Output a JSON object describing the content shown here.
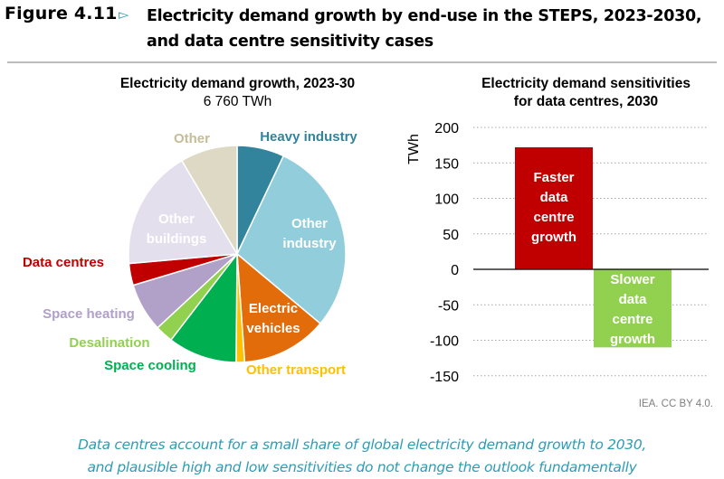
{
  "figure": {
    "number": "Figure 4.11",
    "arrow": "▻",
    "title_line1": "Electricity demand growth by end-use in the STEPS, 2023-2030,",
    "title_line2": "and data centre sensitivity cases",
    "credit": "IEA. CC BY 4.0.",
    "takeaway_line1": "Data centres account for a small share of global electricity demand growth to 2030,",
    "takeaway_line2": "and plausible high and low sensitivities do not change the outlook fundamentally"
  },
  "chart_data": [
    {
      "type": "pie",
      "title": "Electricity demand growth, 2023-30",
      "subtitle": "6 760 TWh",
      "unit": "TWh",
      "total": 6760,
      "start": "top, clockwise",
      "slices": [
        {
          "label": "Heavy industry",
          "value": 475,
          "color": "#31849b",
          "label_color": "#31849b",
          "label_inside": false
        },
        {
          "label": "Other industry",
          "value": 1965,
          "color": "#92cddc",
          "label_color": "#ffffff",
          "label_inside": true
        },
        {
          "label": "Electric vehicles",
          "value": 865,
          "color": "#e36c0a",
          "label_color": "#ffffff",
          "label_inside": true
        },
        {
          "label": "Other transport",
          "value": 85,
          "color": "#ffc000",
          "label_color": "#ffc000",
          "label_inside": false
        },
        {
          "label": "Space cooling",
          "value": 695,
          "color": "#00b050",
          "label_color": "#00b050",
          "label_inside": false
        },
        {
          "label": "Desalination",
          "value": 180,
          "color": "#92d050",
          "label_color": "#92d050",
          "label_inside": false
        },
        {
          "label": "Space heating",
          "value": 490,
          "color": "#b1a0c7",
          "label_color": "#b1a0c7",
          "label_inside": false
        },
        {
          "label": "Data centres",
          "value": 220,
          "color": "#c00000",
          "label_color": "#c00000",
          "label_inside": false
        },
        {
          "label": "Other buildings",
          "value": 1210,
          "color": "#e4dfec",
          "label_color": "#ffffff",
          "label_inside": true
        },
        {
          "label": "Other",
          "value": 575,
          "color": "#ddd9c4",
          "label_color": "#c4bd97",
          "label_inside": false
        }
      ]
    },
    {
      "type": "bar",
      "title": "Electricity demand sensitivities for data centres, 2030",
      "title_line1": "Electricity demand sensitivities",
      "title_line2": "for data centres, 2030",
      "ylabel": "TWh",
      "ylim": [
        -150,
        200
      ],
      "yticks": [
        200,
        150,
        100,
        50,
        0,
        -50,
        -100,
        -150
      ],
      "grid": "dotted horizontal",
      "bars": [
        {
          "label_lines": [
            "Faster",
            "data",
            "centre",
            "growth"
          ],
          "value": 172,
          "color": "#c00000"
        },
        {
          "label_lines": [
            "Slower",
            "data",
            "centre",
            "growth"
          ],
          "value": -110,
          "color": "#92d050"
        }
      ]
    }
  ]
}
